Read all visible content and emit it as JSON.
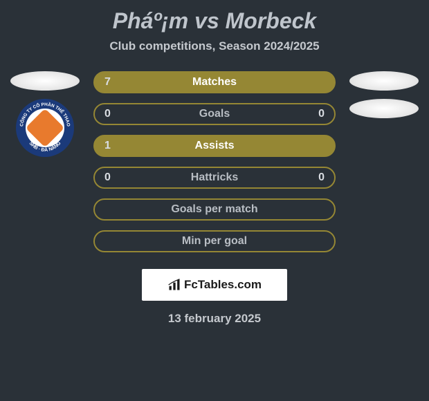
{
  "header": {
    "title": "Pháº¡m vs Morbeck",
    "subtitle": "Club competitions, Season 2024/2025"
  },
  "stats": [
    {
      "label": "Matches",
      "left_value": "7",
      "right_value": "",
      "fill_pct": 100
    },
    {
      "label": "Goals",
      "left_value": "0",
      "right_value": "0",
      "fill_pct": 0
    },
    {
      "label": "Assists",
      "left_value": "1",
      "right_value": "",
      "fill_pct": 100
    },
    {
      "label": "Hattricks",
      "left_value": "0",
      "right_value": "0",
      "fill_pct": 0
    },
    {
      "label": "Goals per match",
      "left_value": "",
      "right_value": "",
      "fill_pct": 0
    },
    {
      "label": "Min per goal",
      "left_value": "",
      "right_value": "",
      "fill_pct": 0
    }
  ],
  "badge": {
    "outer_text_top": "CÔNG TY CỔ PHẦN THỂ THAO",
    "outer_text_bottom": "SHB · ĐÀ NẴNG"
  },
  "attribution": {
    "text": "FcTables.com"
  },
  "footer": {
    "date": "13 february 2025"
  },
  "colors": {
    "background": "#2a3138",
    "bar_color": "#958734",
    "text_primary": "#bfc5cc",
    "text_secondary": "#c5c9ce",
    "stat_value": "#d9dde2"
  }
}
